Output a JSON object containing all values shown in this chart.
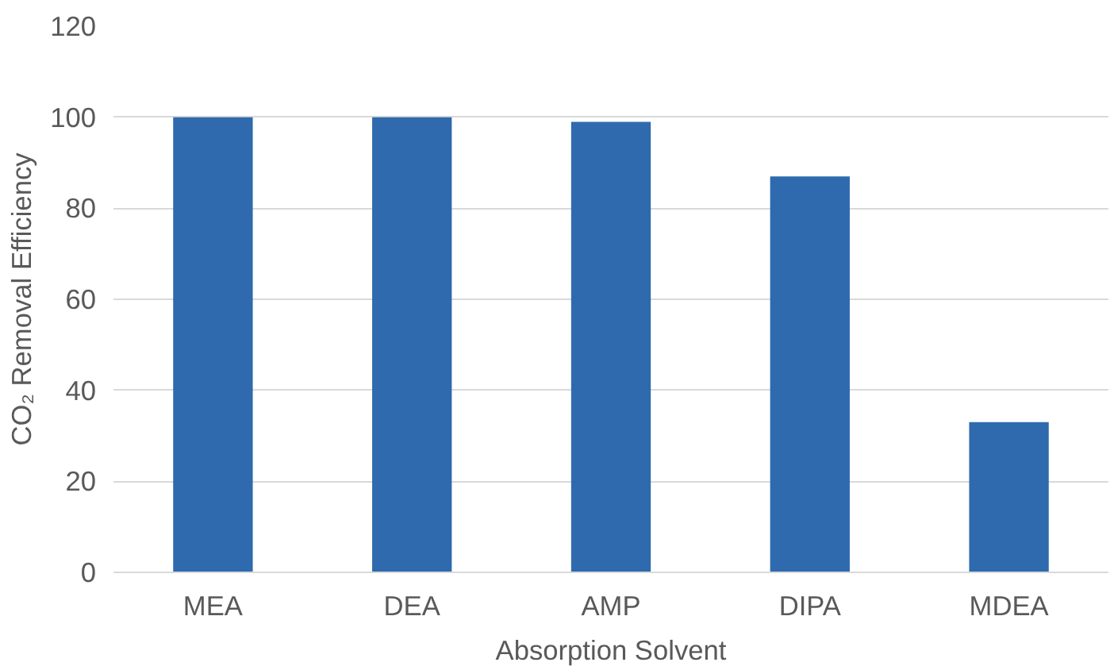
{
  "chart_data": {
    "type": "bar",
    "xlabel": "Absorption Solvent",
    "ylabel": "CO₂ Removal Efficiency",
    "categories": [
      "MEA",
      "DEA",
      "AMP",
      "DIPA",
      "MDEA"
    ],
    "values": [
      100,
      100,
      99,
      87,
      33
    ],
    "color": "#2e6aad",
    "ylim": [
      0,
      120
    ],
    "yticks": [
      0,
      20,
      40,
      60,
      80,
      100,
      120
    ],
    "grid": "y"
  }
}
